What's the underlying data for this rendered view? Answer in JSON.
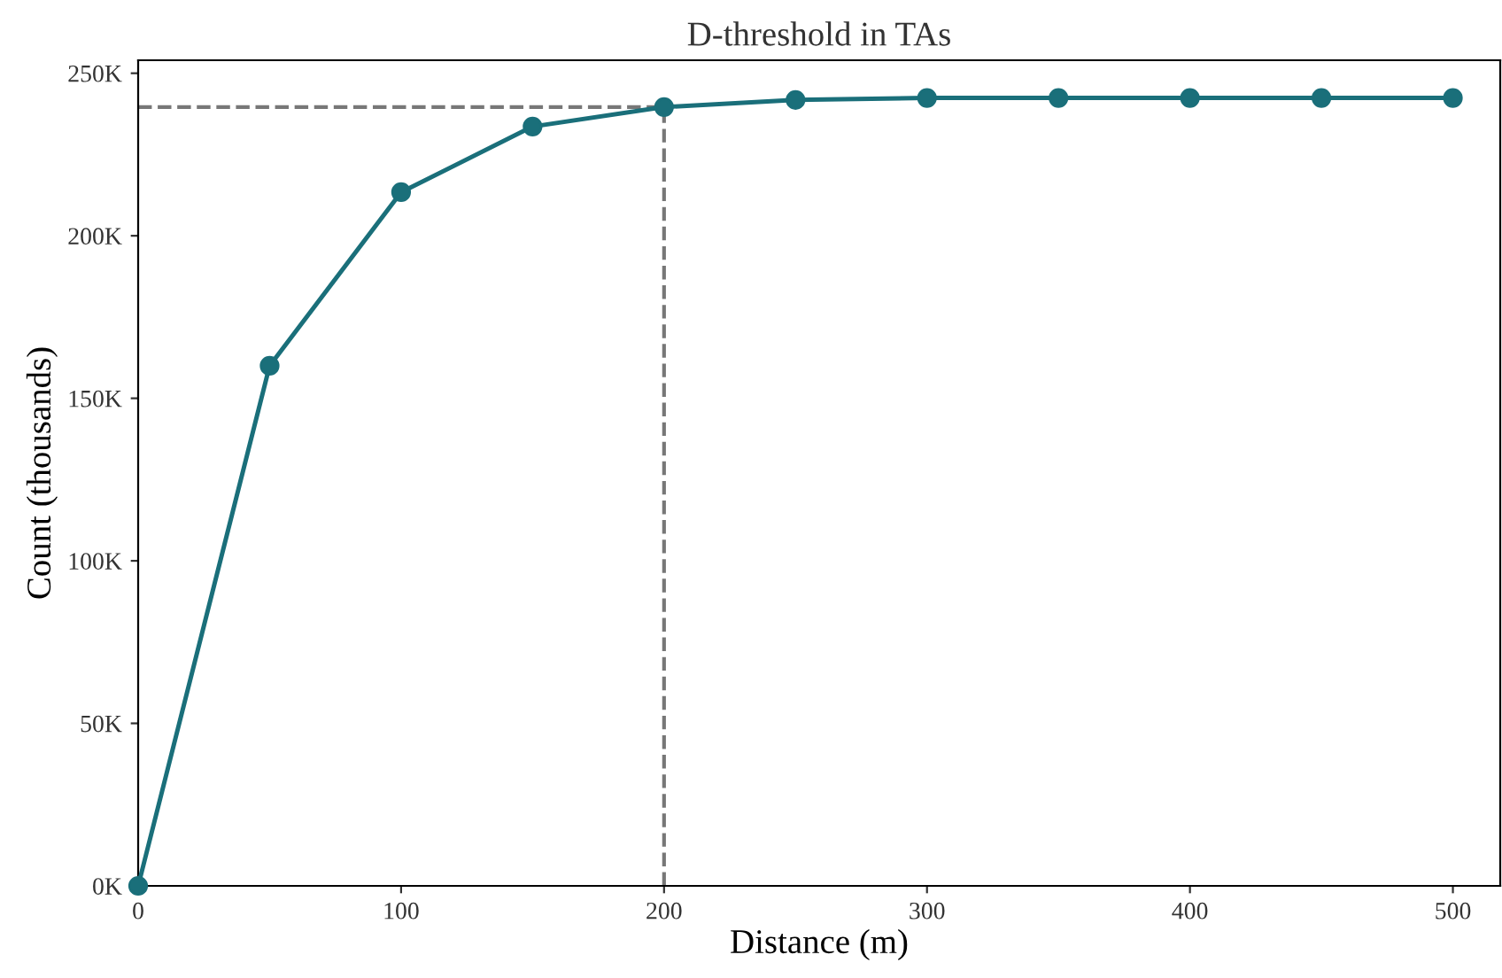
{
  "chart_data": {
    "type": "line",
    "title": "D-threshold in TAs",
    "xlabel": "Distance (m)",
    "ylabel": "Count (thousands)",
    "x": [
      0,
      50,
      100,
      150,
      200,
      250,
      300,
      350,
      400,
      450,
      500
    ],
    "series": [
      {
        "color": "#1a6f7a",
        "values": [
          0,
          160,
          213.4,
          233.6,
          239.6,
          241.8,
          242.4,
          242.4,
          242.4,
          242.4,
          242.4
        ]
      }
    ],
    "marker": "circle",
    "line_style": "solid",
    "grid": false,
    "legend": false,
    "xlim": [
      0,
      518
    ],
    "xticks": [
      0,
      100,
      200,
      300,
      400,
      500
    ],
    "ylim": [
      0,
      254
    ],
    "yticks": [
      {
        "value": 0,
        "label": "0K"
      },
      {
        "value": 50,
        "label": "50K"
      },
      {
        "value": 100,
        "label": "100K"
      },
      {
        "value": 150,
        "label": "150K"
      },
      {
        "value": 200,
        "label": "200K"
      },
      {
        "value": 250,
        "label": "250K"
      }
    ],
    "ref_lines": [
      {
        "axis": "y",
        "value": 239.6,
        "color": "#777777",
        "line_style": "dashed"
      },
      {
        "axis": "x",
        "value": 200,
        "color": "#777777",
        "line_style": "dashed"
      }
    ]
  }
}
